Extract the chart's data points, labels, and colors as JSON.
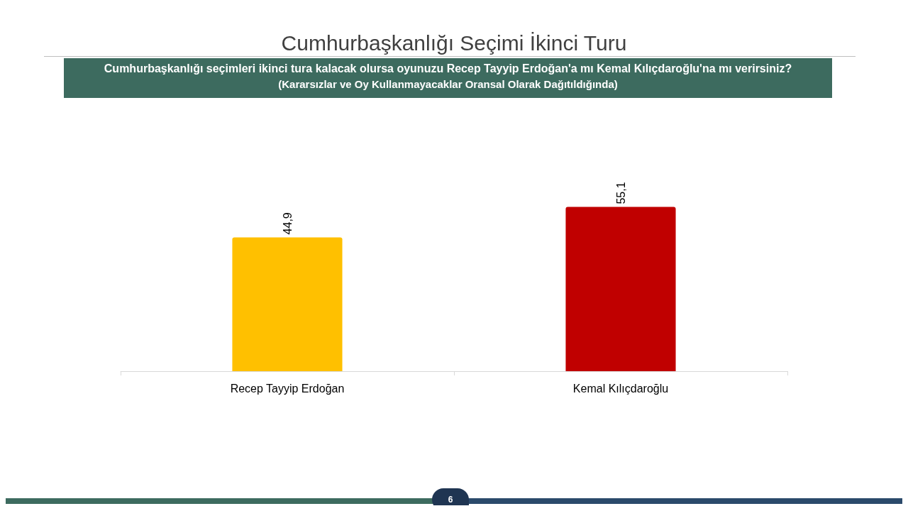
{
  "chart_data": {
    "type": "bar",
    "title": "Cumhurbaşkanlığı Seçimi İkinci Turu",
    "subtitle": "Cumhurbaşkanlığı seçimleri ikinci tura kalacak olursa oyunuzu Recep Tayyip Erdoğan'a mı Kemal Kılıçdaroğlu'na mı verirsiniz?",
    "annotations": [
      "(Kararsızlar ve Oy Kullanmayacaklar Oransal Olarak Dağıtıldığında)",
      "6"
    ],
    "categories": [
      "Recep Tayyip Erdoğan",
      "Kemal Kılıçdaroğlu"
    ],
    "values": [
      44.9,
      55.1
    ],
    "value_labels": [
      "44,9",
      "55,1"
    ],
    "colors": [
      "#ffc000",
      "#c00000"
    ],
    "tick_labels": "x"
  }
}
